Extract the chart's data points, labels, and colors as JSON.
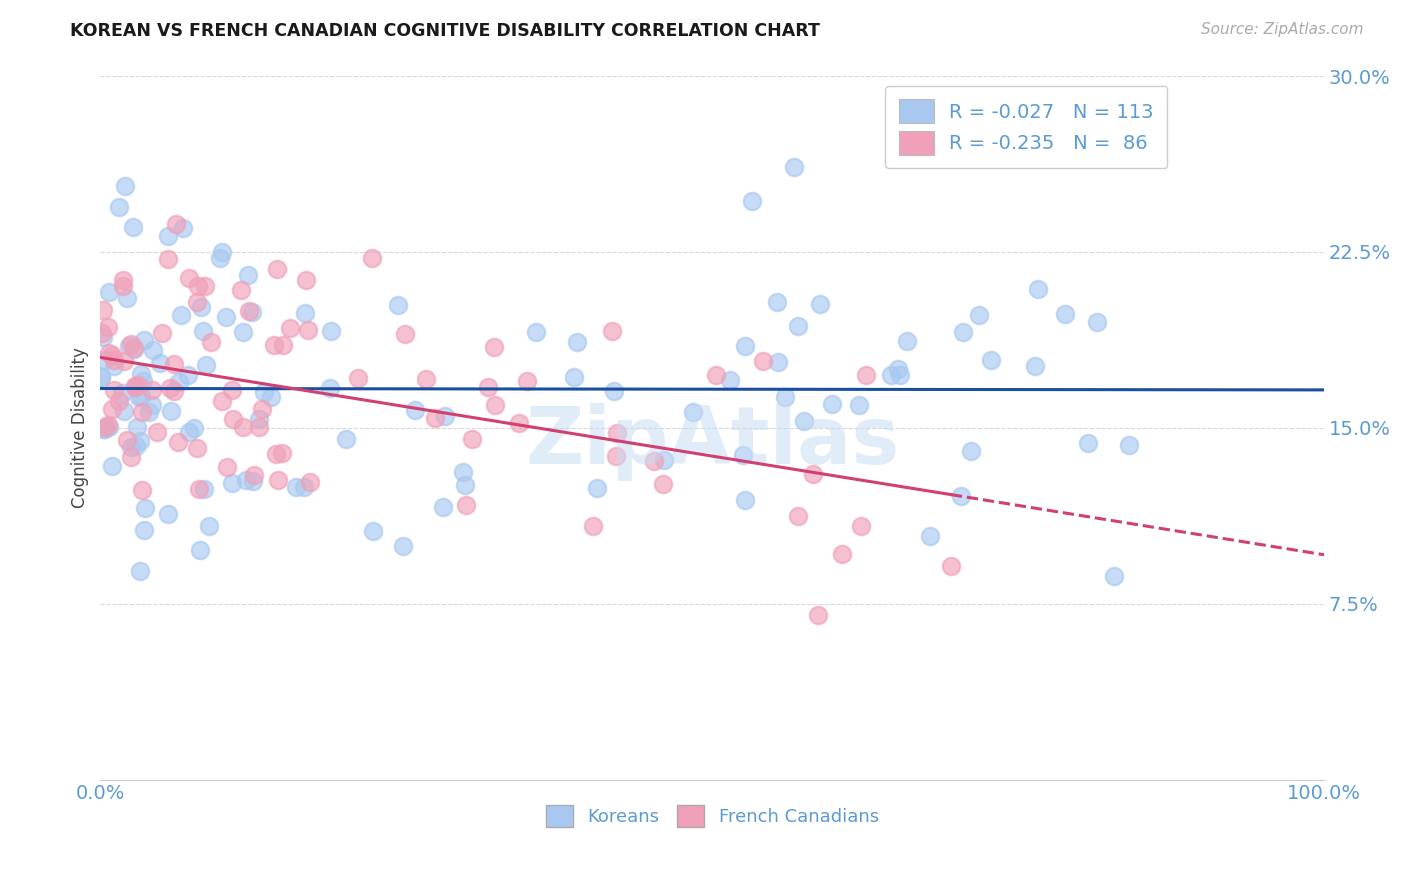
{
  "title": "KOREAN VS FRENCH CANADIAN COGNITIVE DISABILITY CORRELATION CHART",
  "source": "Source: ZipAtlas.com",
  "ylabel": "Cognitive Disability",
  "xlim": [
    0,
    1.0
  ],
  "ylim": [
    0,
    0.3
  ],
  "yticks": [
    0.075,
    0.15,
    0.225,
    0.3
  ],
  "ytick_labels": [
    "7.5%",
    "15.0%",
    "22.5%",
    "30.0%"
  ],
  "xticks": [
    0.0,
    0.2,
    0.4,
    0.6,
    0.8,
    1.0
  ],
  "xtick_labels": [
    "0.0%",
    "",
    "",
    "",
    "",
    "100.0%"
  ],
  "korean_color": "#a8c8f0",
  "french_color": "#f0a0b8",
  "korean_R": -0.027,
  "korean_N": 113,
  "french_R": -0.235,
  "french_N": 86,
  "legend_label_1": "R = -0.027   N = 113",
  "legend_label_2": "R = -0.235   N =  86",
  "watermark": "ZipAtlas",
  "title_color": "#1a1a1a",
  "axis_color": "#5b9bd5",
  "grid_color": "#d8d8d8",
  "trend_korean_color": "#1a4f9e",
  "trend_french_color": "#d04070",
  "background_color": "#ffffff"
}
